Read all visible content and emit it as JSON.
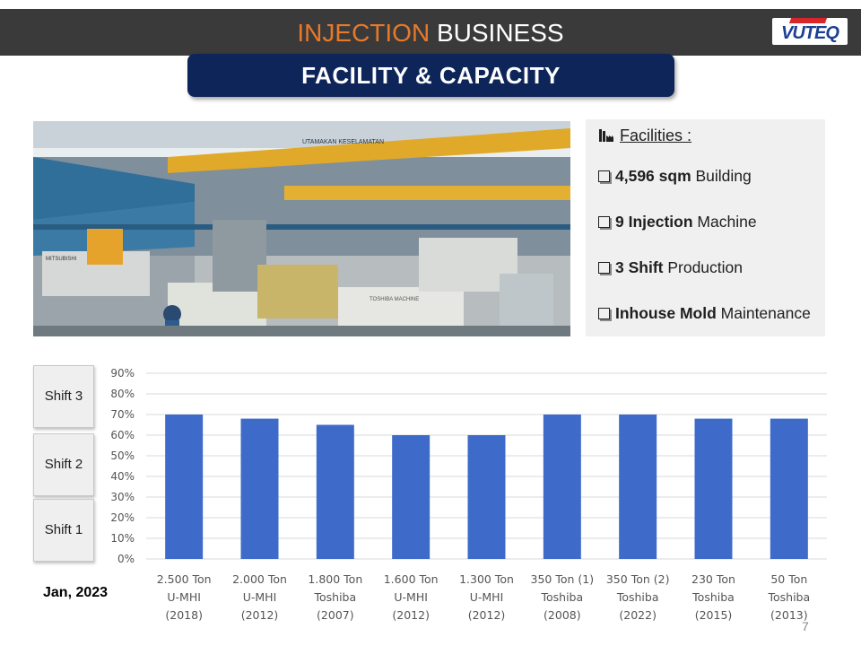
{
  "header": {
    "title_accent": "INJECTION",
    "title_rest": " BUSINESS",
    "logo_text": "VUTEQ"
  },
  "banner": {
    "text": "FACILITY & CAPACITY"
  },
  "photo": {
    "signs": [
      "UTAMAKAN KESELAMATAN",
      "TOSHIBA MACHINE",
      "MITSUBISHI"
    ]
  },
  "facilities": {
    "heading": "Facilities :",
    "icon": "factory-icon",
    "items": [
      {
        "bold": "4,596 sqm",
        "rest": " Building"
      },
      {
        "bold": "9 Injection",
        "rest": " Machine"
      },
      {
        "bold": "3 Shift",
        "rest": " Production"
      },
      {
        "bold": "Inhouse Mold",
        "rest": " Maintenance"
      }
    ]
  },
  "shifts": {
    "shift3": "Shift 3",
    "shift2": "Shift 2",
    "shift1": "Shift 1"
  },
  "date_label": "Jan, 2023",
  "page_number": "7",
  "colors": {
    "bar": "#3e6bc9",
    "grid": "#d9d9d9",
    "header": "#3a3a3a",
    "banner": "#0d2559",
    "accent": "#e8792a"
  },
  "chart_data": {
    "type": "bar",
    "title": "",
    "xlabel": "",
    "ylabel": "",
    "ylim": [
      0,
      90
    ],
    "y_ticks": [
      "0%",
      "10%",
      "20%",
      "30%",
      "40%",
      "50%",
      "60%",
      "70%",
      "80%",
      "90%"
    ],
    "categories": [
      [
        "2.500 Ton",
        "U-MHI",
        "(2018)"
      ],
      [
        "2.000 Ton",
        "U-MHI",
        "(2012)"
      ],
      [
        "1.800 Ton",
        "Toshiba",
        "(2007)"
      ],
      [
        "1.600 Ton",
        "U-MHI",
        "(2012)"
      ],
      [
        "1.300 Ton",
        "U-MHI",
        "(2012)"
      ],
      [
        "350 Ton (1)",
        "Toshiba",
        "(2008)"
      ],
      [
        "350 Ton (2)",
        "Toshiba",
        "(2022)"
      ],
      [
        "230 Ton",
        "Toshiba",
        "(2015)"
      ],
      [
        "50 Ton",
        "Toshiba",
        "(2013)"
      ]
    ],
    "values": [
      70,
      68,
      65,
      60,
      60,
      70,
      70,
      68,
      68
    ],
    "grid": true,
    "legend": "none"
  }
}
